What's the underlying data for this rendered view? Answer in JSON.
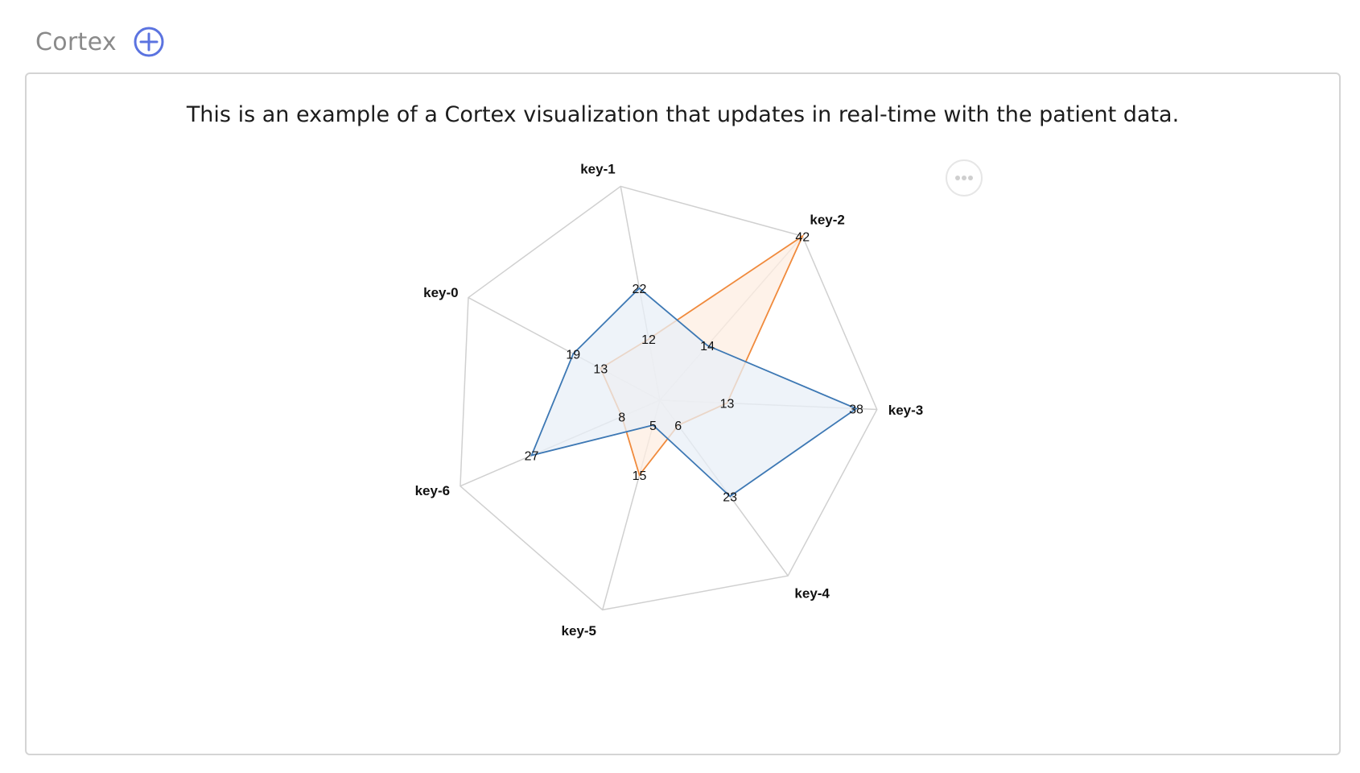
{
  "header": {
    "title": "Cortex",
    "add_icon": "plus-circle-icon"
  },
  "card": {
    "description": "This is an example of a Cortex visualization that updates in real-time with the patient data.",
    "more_icon": "ellipsis-icon"
  },
  "colors": {
    "series_a": "#3d78b4",
    "series_a_fill": "#e8eff7",
    "series_b": "#f08a3c",
    "series_b_fill": "#fdeee2",
    "grid": "#d0d0d0",
    "accent": "#5b73e0"
  },
  "chart_data": {
    "type": "radar",
    "axes": [
      "key-0",
      "key-1",
      "key-2",
      "key-3",
      "key-4",
      "key-5",
      "key-6"
    ],
    "rmax": 42,
    "series": [
      {
        "values": [
          19,
          22,
          14,
          38,
          23,
          5,
          27
        ]
      },
      {
        "values": [
          13,
          12,
          42,
          13,
          6,
          15,
          8
        ]
      }
    ]
  }
}
